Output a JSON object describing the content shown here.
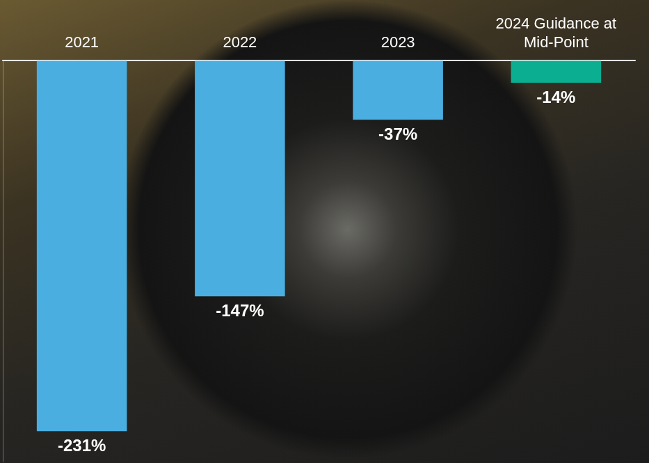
{
  "chart_data": {
    "type": "bar",
    "categories": [
      "2021",
      "2022",
      "2023",
      "2024 Guidance at Mid-Point"
    ],
    "values": [
      -231,
      -147,
      -37,
      -14
    ],
    "value_labels": [
      "-231%",
      "-147%",
      "-37%",
      "-14%"
    ],
    "colors": [
      "#4AAFE0",
      "#4AAFE0",
      "#4AAFE0",
      "#0BAE91"
    ],
    "ylim": [
      -250,
      0
    ],
    "yticks": [
      0
    ],
    "grid": true,
    "data_labels": true,
    "tick_labels": "x"
  }
}
